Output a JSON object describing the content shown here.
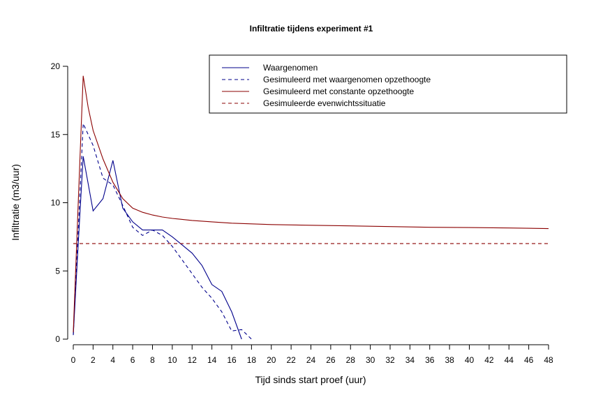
{
  "chart_data": {
    "type": "line",
    "title": "Infiltratie tijdens experiment #1",
    "xlabel": "Tijd sinds start proef (uur)",
    "ylabel": "Infiltratie (m3/uur)",
    "xlim": [
      0,
      48
    ],
    "ylim": [
      0,
      20
    ],
    "x_ticks": [
      0,
      2,
      4,
      6,
      8,
      10,
      12,
      14,
      16,
      18,
      20,
      22,
      24,
      26,
      28,
      30,
      32,
      34,
      36,
      38,
      40,
      42,
      44,
      46,
      48
    ],
    "y_ticks": [
      0,
      5,
      10,
      15,
      20
    ],
    "grid": false,
    "legend_position": "top-right",
    "series": [
      {
        "name": "Waargenomen",
        "color": "#00008B",
        "dash": "solid",
        "points": [
          [
            0,
            0.3
          ],
          [
            0.5,
            7.0
          ],
          [
            1,
            13.4
          ],
          [
            2,
            9.4
          ],
          [
            3,
            10.3
          ],
          [
            4,
            13.1
          ],
          [
            5,
            9.6
          ],
          [
            6,
            8.6
          ],
          [
            7,
            8.0
          ],
          [
            8,
            8.0
          ],
          [
            9,
            8.0
          ],
          [
            10,
            7.5
          ],
          [
            11,
            6.9
          ],
          [
            12,
            6.3
          ],
          [
            13,
            5.4
          ],
          [
            14,
            4.0
          ],
          [
            15,
            3.5
          ],
          [
            16,
            2.0
          ],
          [
            17,
            0
          ]
        ]
      },
      {
        "name": "Gesimuleerd met waargenomen opzethoogte",
        "color": "#00008B",
        "dash": "dashed",
        "points": [
          [
            0,
            0.3
          ],
          [
            0.5,
            8.0
          ],
          [
            1,
            15.8
          ],
          [
            2,
            14.2
          ],
          [
            3,
            11.8
          ],
          [
            4,
            11.3
          ],
          [
            5,
            9.8
          ],
          [
            6,
            8.2
          ],
          [
            7,
            7.6
          ],
          [
            8,
            8.0
          ],
          [
            9,
            7.6
          ],
          [
            10,
            6.8
          ],
          [
            11,
            5.8
          ],
          [
            12,
            4.8
          ],
          [
            13,
            3.8
          ],
          [
            14,
            3.0
          ],
          [
            15,
            2.0
          ],
          [
            16,
            0.6
          ],
          [
            17,
            0.7
          ],
          [
            18,
            0
          ]
        ]
      },
      {
        "name": "Gesimuleerd met constante opzethoogte",
        "color": "#8B0000",
        "dash": "solid",
        "points": [
          [
            0,
            0.5
          ],
          [
            0.5,
            10.0
          ],
          [
            1,
            19.3
          ],
          [
            1.5,
            17.0
          ],
          [
            2,
            15.3
          ],
          [
            3,
            13.2
          ],
          [
            4,
            11.5
          ],
          [
            5,
            10.3
          ],
          [
            6,
            9.6
          ],
          [
            7,
            9.3
          ],
          [
            8,
            9.1
          ],
          [
            9,
            8.95
          ],
          [
            10,
            8.85
          ],
          [
            12,
            8.7
          ],
          [
            14,
            8.6
          ],
          [
            16,
            8.5
          ],
          [
            18,
            8.45
          ],
          [
            20,
            8.4
          ],
          [
            24,
            8.35
          ],
          [
            28,
            8.3
          ],
          [
            32,
            8.25
          ],
          [
            36,
            8.2
          ],
          [
            40,
            8.18
          ],
          [
            44,
            8.15
          ],
          [
            48,
            8.1
          ]
        ]
      },
      {
        "name": "Gesimuleerde evenwichtssituatie",
        "color": "#8B0000",
        "dash": "dashed",
        "points": [
          [
            0,
            7.0
          ],
          [
            48,
            7.0
          ]
        ]
      }
    ]
  }
}
